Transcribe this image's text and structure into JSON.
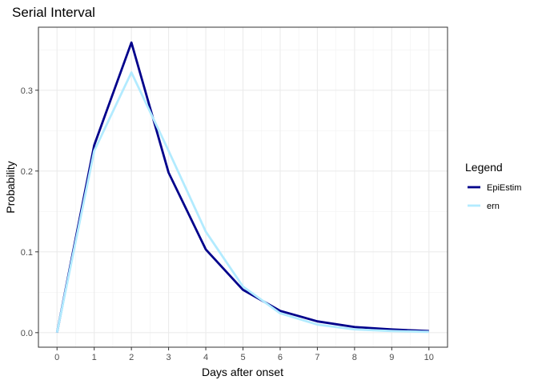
{
  "chart_data": {
    "type": "line",
    "title": "Serial Interval",
    "xlabel": "Days after onset",
    "ylabel": "Probability",
    "x": [
      0,
      1,
      2,
      3,
      4,
      5,
      6,
      7,
      8,
      9,
      10
    ],
    "xlim": [
      -0.5,
      10.5
    ],
    "ylim": [
      -0.018,
      0.378
    ],
    "x_ticks": [
      "0",
      "1",
      "2",
      "3",
      "4",
      "5",
      "6",
      "7",
      "8",
      "9",
      "10"
    ],
    "y_ticks": [
      {
        "value": 0.0,
        "label": "0.0"
      },
      {
        "value": 0.1,
        "label": "0.1"
      },
      {
        "value": 0.2,
        "label": "0.2"
      },
      {
        "value": 0.3,
        "label": "0.3"
      }
    ],
    "grid": true,
    "legend_title": "Legend",
    "legend_position": "right",
    "series": [
      {
        "name": "EpiEstim",
        "color": "#00008B",
        "values": [
          0.0,
          0.232,
          0.359,
          0.198,
          0.103,
          0.053,
          0.027,
          0.014,
          0.007,
          0.004,
          0.002
        ]
      },
      {
        "name": "ern",
        "color": "#B2EBFF",
        "values": [
          0.0,
          0.225,
          0.322,
          0.225,
          0.125,
          0.057,
          0.024,
          0.01,
          0.004,
          0.002,
          0.001
        ]
      }
    ]
  }
}
